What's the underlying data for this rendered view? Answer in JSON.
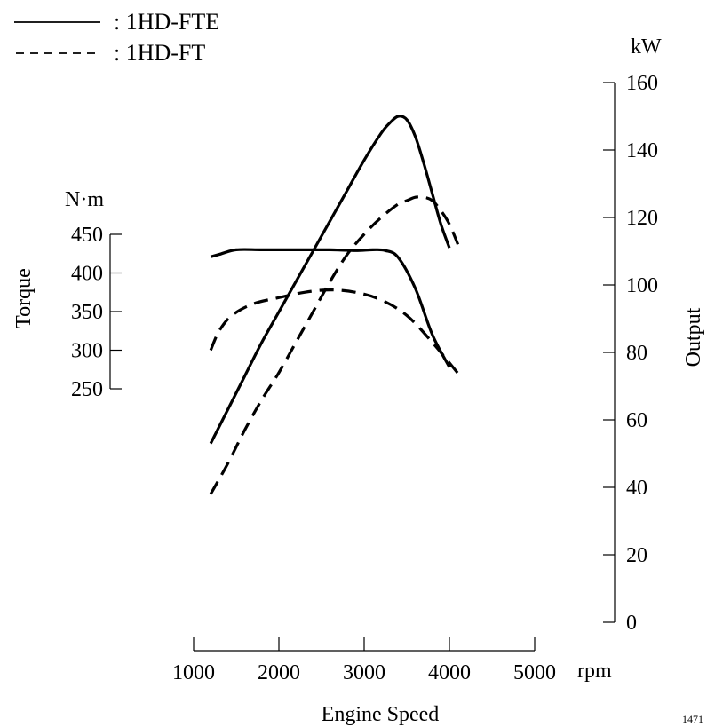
{
  "chart_data": {
    "type": "line",
    "title": "",
    "xlabel": "Engine Speed",
    "x_unit": "rpm",
    "x_ticks": [
      1000,
      2000,
      3000,
      4000,
      5000
    ],
    "xlim": [
      1000,
      5000
    ],
    "torque_axis": {
      "label": "Torque",
      "unit": "N·m",
      "ticks": [
        250,
        300,
        350,
        400,
        450
      ],
      "range": [
        250,
        450
      ]
    },
    "output_axis": {
      "label": "Output",
      "unit": "kW",
      "ticks": [
        0,
        20,
        40,
        60,
        80,
        100,
        120,
        140,
        160
      ],
      "range": [
        0,
        160
      ]
    },
    "legend": {
      "placement": "top-left",
      "entries": [
        {
          "label": ": 1HD-FTE",
          "style": "solid"
        },
        {
          "label": ": 1HD-FT",
          "style": "dashed"
        }
      ]
    },
    "series": [
      {
        "engine": "1HD-FTE",
        "quantity": "torque",
        "style": "solid",
        "x": [
          1200,
          1300,
          1500,
          1800,
          2200,
          2600,
          2900,
          3100,
          3250,
          3400,
          3600,
          3800,
          4000
        ],
        "y": [
          421,
          424,
          430,
          430,
          430,
          430,
          429,
          430,
          429,
          420,
          380,
          320,
          278
        ]
      },
      {
        "engine": "1HD-FTE",
        "quantity": "output",
        "style": "solid",
        "x": [
          1200,
          1400,
          1600,
          1800,
          2000,
          2200,
          2400,
          2600,
          2800,
          3000,
          3200,
          3300,
          3400,
          3500,
          3600,
          3700,
          3800,
          3900,
          4000
        ],
        "y": [
          53,
          63,
          73,
          83,
          92,
          101,
          110,
          119,
          128,
          137,
          145,
          148,
          150,
          149,
          144,
          136,
          127,
          118,
          111
        ]
      },
      {
        "engine": "1HD-FT",
        "quantity": "torque",
        "style": "dashed",
        "x": [
          1200,
          1300,
          1450,
          1700,
          2000,
          2300,
          2600,
          2900,
          3200,
          3500,
          3800,
          4100
        ],
        "y": [
          300,
          325,
          345,
          360,
          368,
          375,
          378,
          375,
          365,
          345,
          310,
          270
        ]
      },
      {
        "engine": "1HD-FT",
        "quantity": "output",
        "style": "dashed",
        "x": [
          1200,
          1400,
          1600,
          1800,
          2000,
          2200,
          2400,
          2600,
          2800,
          3000,
          3200,
          3400,
          3500,
          3600,
          3700,
          3800,
          3900,
          4000,
          4100
        ],
        "y": [
          38,
          47,
          57,
          66,
          74,
          83,
          92,
          101,
          109,
          115,
          120,
          124,
          125,
          126,
          126,
          125,
          122,
          118,
          112
        ]
      }
    ],
    "grid": false,
    "corner_note": "1471"
  }
}
